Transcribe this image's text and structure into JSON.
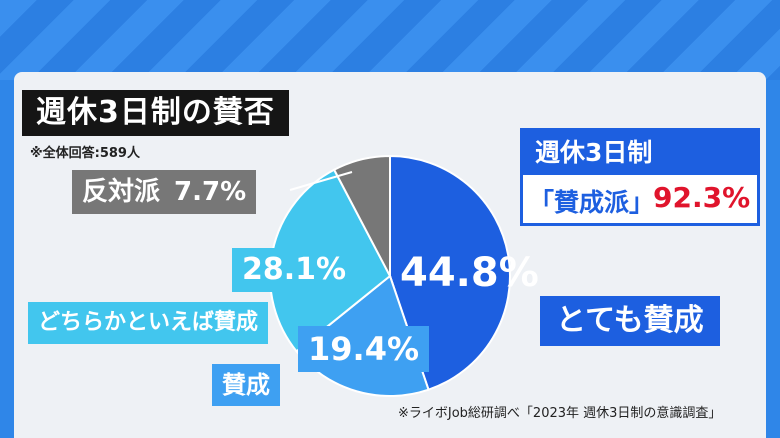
{
  "title": "週休3日制の賛否",
  "sample_note": "※全体回答:589人",
  "source_note": "※ライボJob総研調べ「2023年 週休3日制の意識調査」",
  "summary": {
    "heading": "週休3日制",
    "label": "「賛成派」",
    "value": "92.3%"
  },
  "labels": {
    "strongly_agree": "とても賛成",
    "strongly_agree_pct": "44.8%",
    "agree": "賛成",
    "agree_pct": "19.4%",
    "rather_agree": "どちらかといえば賛成",
    "rather_agree_pct": "28.1%",
    "oppose": "反対派",
    "oppose_pct": "7.7%"
  },
  "colors": {
    "strongly_agree": "#1d5fe0",
    "agree": "#3ea0f2",
    "rather_agree": "#42c6ee",
    "oppose": "#777777",
    "accent_red": "#e0142c"
  },
  "chart_data": {
    "type": "pie",
    "title": "週休3日制の賛否",
    "slices": [
      {
        "label": "とても賛成",
        "value": 44.8,
        "color": "#1d5fe0"
      },
      {
        "label": "賛成",
        "value": 19.4,
        "color": "#3ea0f2"
      },
      {
        "label": "どちらかといえば賛成",
        "value": 28.1,
        "color": "#42c6ee"
      },
      {
        "label": "反対派",
        "value": 7.7,
        "color": "#777777"
      }
    ]
  }
}
